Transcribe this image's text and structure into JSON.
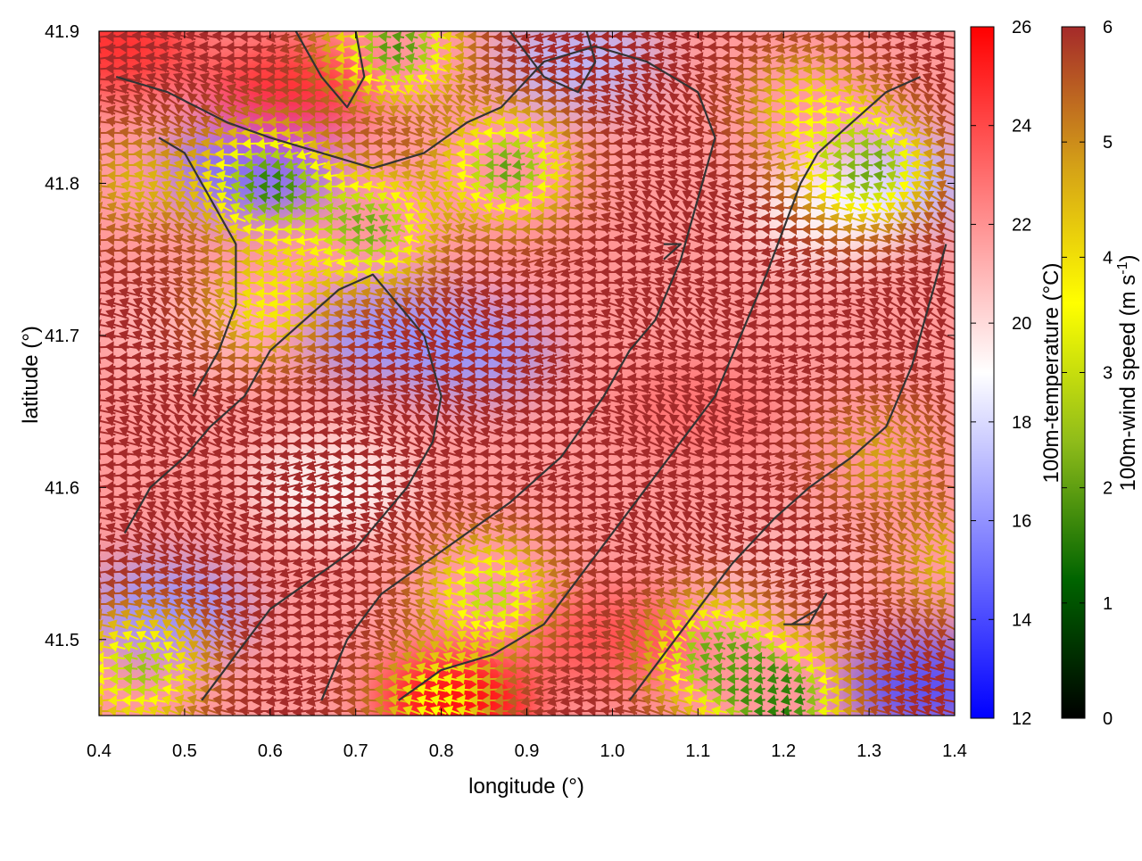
{
  "chart_data": {
    "type": "heatmap",
    "title": "",
    "xlabel": "longitude (°)",
    "ylabel": "latitude (°)",
    "xlim": [
      0.4,
      1.4
    ],
    "ylim": [
      41.45,
      41.9
    ],
    "x_ticks": [
      "0.4",
      "0.5",
      "0.6",
      "0.7",
      "0.8",
      "0.9",
      "1.0",
      "1.1",
      "1.2",
      "1.3",
      "1.4"
    ],
    "y_ticks": [
      "41.5",
      "41.6",
      "41.7",
      "41.8",
      "41.9"
    ],
    "grid": false,
    "layers": [
      {
        "kind": "color-map",
        "variable": "100m-temperature",
        "unit": "°C"
      },
      {
        "kind": "vector-arrows",
        "variable": "100m-wind",
        "color_by": "100m-wind speed",
        "unit": "m s-1"
      },
      {
        "kind": "contour-lines",
        "color": "#333333"
      }
    ],
    "colorbars": [
      {
        "label": "100m-temperature (°C)",
        "range": [
          12,
          26
        ],
        "ticks": [
          "12",
          "14",
          "16",
          "18",
          "20",
          "22",
          "24",
          "26"
        ],
        "colors": [
          "#0000ff",
          "#ffffff",
          "#ff0000"
        ]
      },
      {
        "label_main": "100m-wind speed (m s",
        "label_sup": "-1",
        "label_end": ")",
        "range": [
          0,
          6
        ],
        "ticks": [
          "0",
          "1",
          "2",
          "3",
          "4",
          "5",
          "6"
        ],
        "colors": [
          "#000000",
          "#006400",
          "#8fbc1a",
          "#ffff00",
          "#d4a017",
          "#a52a2a"
        ]
      }
    ],
    "temperature_regions": [
      {
        "lon": 0.58,
        "lat": 41.81,
        "value": 15
      },
      {
        "lon": 0.74,
        "lat": 41.7,
        "value": 16
      },
      {
        "lon": 0.83,
        "lat": 41.69,
        "value": 16
      },
      {
        "lon": 0.67,
        "lat": 41.6,
        "value": 19
      },
      {
        "lon": 0.48,
        "lat": 41.52,
        "value": 16
      },
      {
        "lon": 1.37,
        "lat": 41.47,
        "value": 14
      },
      {
        "lon": 0.96,
        "lat": 41.88,
        "value": 17
      },
      {
        "lon": 1.34,
        "lat": 41.8,
        "value": 17
      },
      {
        "lon": 1.25,
        "lat": 41.78,
        "value": 19
      },
      {
        "lon": 0.42,
        "lat": 41.89,
        "value": 25
      },
      {
        "lon": 0.62,
        "lat": 41.86,
        "value": 25
      },
      {
        "lon": 0.82,
        "lat": 41.46,
        "value": 26
      },
      {
        "lon": 1.0,
        "lat": 41.5,
        "value": 24
      },
      {
        "lon": 1.1,
        "lat": 41.65,
        "value": 23
      },
      {
        "lon": 1.3,
        "lat": 41.62,
        "value": 22
      },
      {
        "lon": 0.5,
        "lat": 41.7,
        "value": 21
      },
      {
        "lon": 0.95,
        "lat": 41.75,
        "value": 22
      },
      {
        "lon": 1.2,
        "lat": 41.55,
        "value": 21
      }
    ],
    "wind_field": {
      "u_mean": -1.0,
      "v_mean": -0.15,
      "speed_max": 6
    },
    "wind_speed_regions": [
      {
        "lon": 0.72,
        "lat": 41.77,
        "speed": 2.2
      },
      {
        "lon": 0.6,
        "lat": 41.8,
        "speed": 1.6
      },
      {
        "lon": 0.88,
        "lat": 41.81,
        "speed": 2.0
      },
      {
        "lon": 0.75,
        "lat": 41.89,
        "speed": 1.8
      },
      {
        "lon": 0.6,
        "lat": 41.72,
        "speed": 3.8
      },
      {
        "lon": 0.86,
        "lat": 41.53,
        "speed": 2.8
      },
      {
        "lon": 1.12,
        "lat": 41.49,
        "speed": 2.2
      },
      {
        "lon": 1.2,
        "lat": 41.46,
        "speed": 1.5
      },
      {
        "lon": 0.45,
        "lat": 41.48,
        "speed": 2.5
      },
      {
        "lon": 1.23,
        "lat": 41.85,
        "speed": 4.0
      },
      {
        "lon": 1.3,
        "lat": 41.81,
        "speed": 2.0
      },
      {
        "lon": 1.32,
        "lat": 41.62,
        "speed": 4.8
      },
      {
        "lon": 1.4,
        "lat": 41.55,
        "speed": 4.5
      },
      {
        "lon": 0.45,
        "lat": 41.8,
        "speed": 4.6
      },
      {
        "lon": 0.8,
        "lat": 41.46,
        "speed": 3.5
      }
    ],
    "contours": [
      [
        [
          0.43,
          41.57
        ],
        [
          0.46,
          41.6
        ],
        [
          0.5,
          41.62
        ],
        [
          0.53,
          41.64
        ],
        [
          0.57,
          41.66
        ],
        [
          0.6,
          41.69
        ],
        [
          0.64,
          41.71
        ],
        [
          0.68,
          41.73
        ],
        [
          0.72,
          41.74
        ],
        [
          0.75,
          41.72
        ],
        [
          0.78,
          41.7
        ],
        [
          0.8,
          41.66
        ],
        [
          0.79,
          41.63
        ],
        [
          0.76,
          41.6
        ],
        [
          0.73,
          41.58
        ],
        [
          0.7,
          41.56
        ],
        [
          0.65,
          41.54
        ],
        [
          0.6,
          41.52
        ],
        [
          0.56,
          41.49
        ],
        [
          0.52,
          41.46
        ]
      ],
      [
        [
          0.66,
          41.46
        ],
        [
          0.69,
          41.5
        ],
        [
          0.73,
          41.53
        ],
        [
          0.78,
          41.55
        ],
        [
          0.83,
          41.57
        ],
        [
          0.88,
          41.59
        ],
        [
          0.94,
          41.62
        ],
        [
          0.99,
          41.66
        ],
        [
          1.02,
          41.69
        ],
        [
          1.05,
          41.71
        ],
        [
          1.08,
          41.75
        ],
        [
          1.1,
          41.79
        ],
        [
          1.12,
          41.83
        ],
        [
          1.1,
          41.86
        ],
        [
          1.04,
          41.88
        ],
        [
          0.98,
          41.89
        ],
        [
          0.92,
          41.88
        ],
        [
          0.87,
          41.85
        ],
        [
          0.83,
          41.84
        ],
        [
          0.78,
          41.82
        ],
        [
          0.72,
          41.81
        ],
        [
          0.66,
          41.82
        ],
        [
          0.6,
          41.83
        ],
        [
          0.55,
          41.84
        ],
        [
          0.48,
          41.86
        ],
        [
          0.42,
          41.87
        ]
      ],
      [
        [
          0.75,
          41.46
        ],
        [
          0.8,
          41.48
        ],
        [
          0.86,
          41.49
        ],
        [
          0.92,
          41.51
        ],
        [
          0.96,
          41.54
        ],
        [
          1.0,
          41.57
        ],
        [
          1.04,
          41.6
        ],
        [
          1.08,
          41.63
        ],
        [
          1.12,
          41.66
        ],
        [
          1.15,
          41.7
        ],
        [
          1.18,
          41.74
        ],
        [
          1.2,
          41.77
        ],
        [
          1.22,
          41.8
        ],
        [
          1.24,
          41.82
        ],
        [
          1.28,
          41.84
        ],
        [
          1.32,
          41.86
        ],
        [
          1.36,
          41.87
        ]
      ],
      [
        [
          1.02,
          41.46
        ],
        [
          1.06,
          41.49
        ],
        [
          1.1,
          41.52
        ],
        [
          1.14,
          41.55
        ],
        [
          1.19,
          41.58
        ],
        [
          1.23,
          41.6
        ],
        [
          1.28,
          41.62
        ],
        [
          1.32,
          41.64
        ],
        [
          1.35,
          41.68
        ],
        [
          1.37,
          41.72
        ],
        [
          1.39,
          41.76
        ]
      ],
      [
        [
          0.51,
          41.66
        ],
        [
          0.54,
          41.69
        ],
        [
          0.56,
          41.72
        ],
        [
          0.56,
          41.76
        ],
        [
          0.53,
          41.79
        ],
        [
          0.5,
          41.82
        ],
        [
          0.47,
          41.83
        ]
      ],
      [
        [
          0.63,
          41.9
        ],
        [
          0.66,
          41.87
        ],
        [
          0.69,
          41.85
        ],
        [
          0.71,
          41.87
        ],
        [
          0.7,
          41.9
        ]
      ],
      [
        [
          0.88,
          41.9
        ],
        [
          0.92,
          41.87
        ],
        [
          0.96,
          41.86
        ],
        [
          0.98,
          41.88
        ],
        [
          0.97,
          41.9
        ]
      ],
      [
        [
          1.2,
          41.51
        ],
        [
          1.23,
          41.51
        ],
        [
          1.25,
          41.53
        ],
        [
          1.24,
          41.52
        ],
        [
          1.21,
          41.51
        ]
      ],
      [
        [
          1.06,
          41.75
        ],
        [
          1.08,
          41.76
        ],
        [
          1.06,
          41.76
        ]
      ]
    ]
  }
}
